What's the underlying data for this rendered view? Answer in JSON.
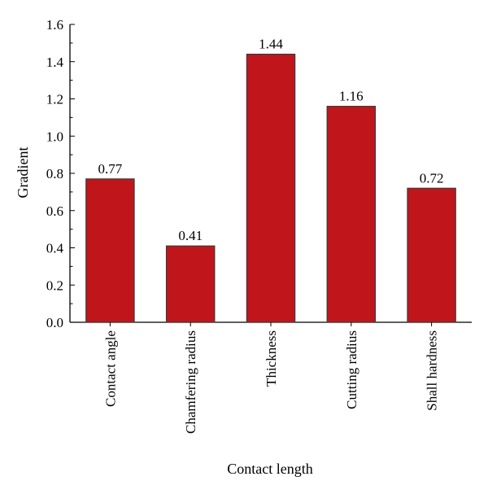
{
  "chart_data": {
    "type": "bar",
    "categories": [
      "Contact angle",
      "Chamfering radius",
      "Thickness",
      "Cutting radius",
      "Shall hardness"
    ],
    "values": [
      0.77,
      0.41,
      1.44,
      1.16,
      0.72
    ],
    "value_labels": [
      "0.77",
      "0.41",
      "1.44",
      "1.16",
      "0.72"
    ],
    "xlabel": "Contact length",
    "ylabel": "Gradient",
    "ylim": [
      0,
      1.6
    ],
    "yticks": [
      "0.0",
      "0.2",
      "0.4",
      "0.6",
      "0.8",
      "1.0",
      "1.2",
      "1.4",
      "1.6"
    ],
    "grid": false,
    "legend": "none",
    "bar_color": "#C0161B",
    "bar_edge_color": "#3a3a3a"
  }
}
